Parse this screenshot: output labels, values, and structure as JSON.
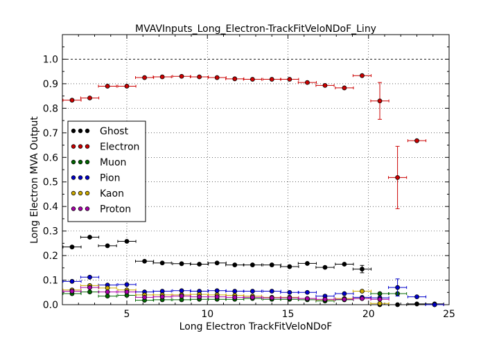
{
  "chart_data": {
    "type": "scatter",
    "title": "MVAVInputs_Long_Electron-TrackFitVeloNDoF_Liny",
    "xlabel": "Long Electron TrackFitVeloNDoF",
    "ylabel": "Long Electron MVA Output",
    "xlim": [
      1,
      25
    ],
    "ylim": [
      0,
      1.1
    ],
    "xticks": [
      5,
      10,
      15,
      20,
      25
    ],
    "yticks": [
      0.0,
      0.1,
      0.2,
      0.3,
      0.4,
      0.5,
      0.6,
      0.7,
      0.8,
      0.9,
      1.0
    ],
    "xtick_labels": [
      "5",
      "10",
      "15",
      "20",
      "25"
    ],
    "ytick_labels": [
      "0.0",
      "0.1",
      "0.2",
      "0.3",
      "0.4",
      "0.5",
      "0.6",
      "0.7",
      "0.8",
      "0.9",
      "1.0"
    ],
    "grid": true,
    "reference_line": 1.0,
    "legend_position": "center-left",
    "series": [
      {
        "name": "Ghost",
        "color": "#000000",
        "x": [
          1.6,
          2.7,
          3.8,
          5.0,
          6.1,
          7.2,
          8.4,
          9.5,
          10.6,
          11.7,
          12.8,
          14.0,
          15.1,
          16.2,
          17.3,
          18.5,
          19.6,
          20.7,
          21.8,
          23.0,
          24.1
        ],
        "y": [
          0.235,
          0.275,
          0.24,
          0.258,
          0.177,
          0.17,
          0.167,
          0.165,
          0.17,
          0.162,
          0.162,
          0.162,
          0.155,
          0.168,
          0.152,
          0.165,
          0.145,
          0.0,
          0.0,
          0.003,
          0.003
        ],
        "yerr": [
          0,
          0,
          0,
          0,
          0,
          0,
          0,
          0,
          0,
          0,
          0,
          0,
          0,
          0,
          0,
          0,
          0.015,
          0,
          0,
          0,
          0
        ]
      },
      {
        "name": "Electron",
        "color": "#cc0000",
        "x": [
          1.6,
          2.7,
          3.8,
          5.0,
          6.1,
          7.2,
          8.4,
          9.5,
          10.6,
          11.7,
          12.8,
          14.0,
          15.1,
          16.2,
          17.3,
          18.5,
          19.6,
          20.7,
          21.8,
          23.0,
          24.1
        ],
        "y": [
          0.833,
          0.842,
          0.89,
          0.89,
          0.925,
          0.928,
          0.93,
          0.928,
          0.925,
          0.92,
          0.918,
          0.918,
          0.918,
          0.905,
          0.893,
          0.883,
          0.933,
          0.83,
          0.518,
          0.668,
          0.0
        ],
        "yerr": [
          0,
          0,
          0,
          0,
          0,
          0,
          0,
          0,
          0,
          0,
          0,
          0,
          0,
          0,
          0,
          0,
          0,
          0.075,
          0.127,
          0,
          0
        ]
      },
      {
        "name": "Muon",
        "color": "#006600",
        "x": [
          1.6,
          2.7,
          3.8,
          5.0,
          6.1,
          7.2,
          8.4,
          9.5,
          10.6,
          11.7,
          12.8,
          14.0,
          15.1,
          16.2,
          17.3,
          18.5,
          19.6,
          20.7,
          21.8
        ],
        "y": [
          0.045,
          0.052,
          0.035,
          0.038,
          0.018,
          0.02,
          0.02,
          0.022,
          0.022,
          0.022,
          0.025,
          0.022,
          0.022,
          0.02,
          0.015,
          0.02,
          0.025,
          0.045,
          0.045
        ],
        "yerr": [
          0,
          0,
          0,
          0,
          0,
          0,
          0,
          0,
          0,
          0,
          0,
          0,
          0,
          0,
          0,
          0,
          0,
          0,
          0
        ]
      },
      {
        "name": "Pion",
        "color": "#0000cc",
        "x": [
          1.6,
          2.7,
          3.8,
          5.0,
          6.1,
          7.2,
          8.4,
          9.5,
          10.6,
          11.7,
          12.8,
          14.0,
          15.1,
          16.2,
          17.3,
          18.5,
          19.6,
          20.7,
          21.8,
          23.0,
          24.1
        ],
        "y": [
          0.095,
          0.112,
          0.08,
          0.082,
          0.052,
          0.055,
          0.057,
          0.055,
          0.057,
          0.055,
          0.055,
          0.055,
          0.05,
          0.05,
          0.035,
          0.045,
          0.03,
          0.028,
          0.07,
          0.032,
          0.0
        ],
        "yerr": [
          0,
          0,
          0,
          0,
          0,
          0,
          0,
          0,
          0,
          0,
          0,
          0,
          0,
          0,
          0,
          0,
          0,
          0,
          0.035,
          0,
          0
        ]
      },
      {
        "name": "Kaon",
        "color": "#ccaa00",
        "x": [
          1.6,
          2.7,
          3.8,
          5.0,
          6.1,
          7.2,
          8.4,
          9.5,
          10.6,
          11.7,
          12.8,
          14.0,
          15.1,
          16.2,
          17.3,
          18.5,
          19.6,
          20.7
        ],
        "y": [
          0.06,
          0.078,
          0.068,
          0.06,
          0.04,
          0.04,
          0.04,
          0.042,
          0.04,
          0.038,
          0.035,
          0.03,
          0.03,
          0.025,
          0.02,
          0.025,
          0.055,
          0.005
        ],
        "yerr": [
          0,
          0,
          0,
          0,
          0,
          0,
          0,
          0,
          0,
          0,
          0,
          0,
          0,
          0,
          0,
          0,
          0,
          0
        ]
      },
      {
        "name": "Proton",
        "color": "#aa00aa",
        "x": [
          1.6,
          2.7,
          3.8,
          5.0,
          6.1,
          7.2,
          8.4,
          9.5,
          10.6,
          11.7,
          12.8,
          14.0,
          15.1,
          16.2,
          17.3,
          18.5,
          19.6,
          20.7
        ],
        "y": [
          0.055,
          0.07,
          0.052,
          0.052,
          0.03,
          0.032,
          0.035,
          0.032,
          0.032,
          0.03,
          0.03,
          0.028,
          0.028,
          0.025,
          0.022,
          0.022,
          0.025,
          0.022
        ],
        "yerr": [
          0,
          0,
          0,
          0,
          0,
          0,
          0,
          0,
          0,
          0,
          0,
          0,
          0,
          0,
          0,
          0,
          0,
          0
        ]
      }
    ]
  }
}
